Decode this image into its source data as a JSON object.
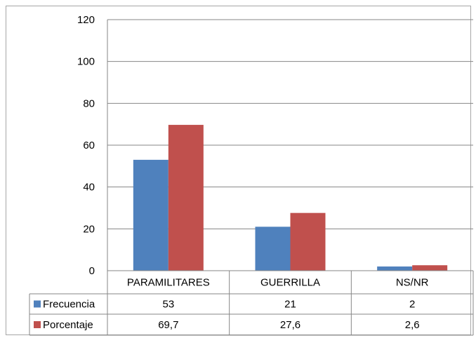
{
  "chart_data": {
    "type": "bar",
    "categories": [
      "PARAMILITARES",
      "GUERRILLA",
      "NS/NR"
    ],
    "series": [
      {
        "name": "Frecuencia",
        "values": [
          53,
          21,
          2
        ],
        "labels": [
          "53",
          "21",
          "2"
        ],
        "color": "#4f81bd"
      },
      {
        "name": "Porcentaje",
        "values": [
          69.7,
          27.6,
          2.6
        ],
        "labels": [
          "69,7",
          "27,6",
          "2,6"
        ],
        "color": "#c0504d"
      }
    ],
    "ylim": [
      0,
      120
    ],
    "yticks": [
      "0",
      "20",
      "40",
      "60",
      "80",
      "100",
      "120"
    ],
    "grid": true,
    "legend": "data-table"
  }
}
